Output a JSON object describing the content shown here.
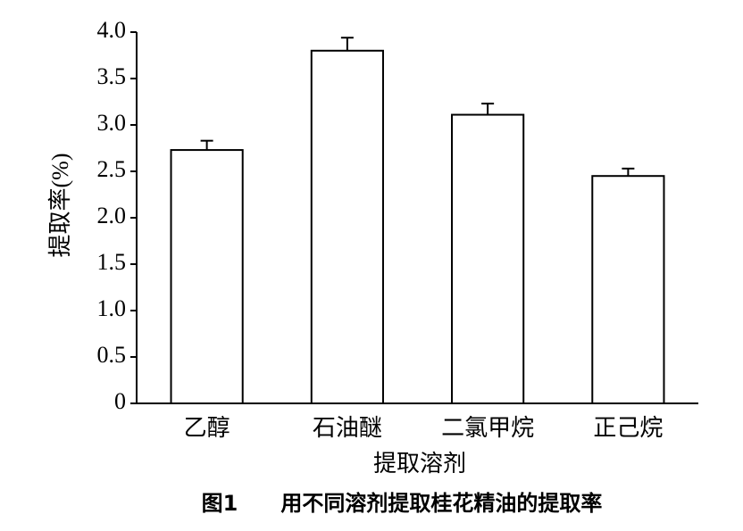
{
  "chart_data": {
    "type": "bar",
    "categories": [
      "乙醇",
      "石油醚",
      "二氯甲烷",
      "正己烷"
    ],
    "values": [
      2.73,
      3.8,
      3.11,
      2.45
    ],
    "errors": [
      0.1,
      0.14,
      0.12,
      0.08
    ],
    "color": "#ffffff",
    "ylim": [
      0,
      4.0
    ],
    "yticks": [
      0,
      0.5,
      {
        "value": 1.0,
        "label": "1.0"
      },
      1.5,
      {
        "value": 2.0,
        "label": "2.0"
      },
      2.5,
      {
        "value": 3.0,
        "label": "3.0"
      },
      3.5,
      {
        "value": 4.0,
        "label": "4.0"
      }
    ],
    "xlabel": "提取溶剂",
    "ylabel": "提取率(%)",
    "caption": "图1　　用不同溶剂提取桂花精油的提取率",
    "grid": false
  }
}
